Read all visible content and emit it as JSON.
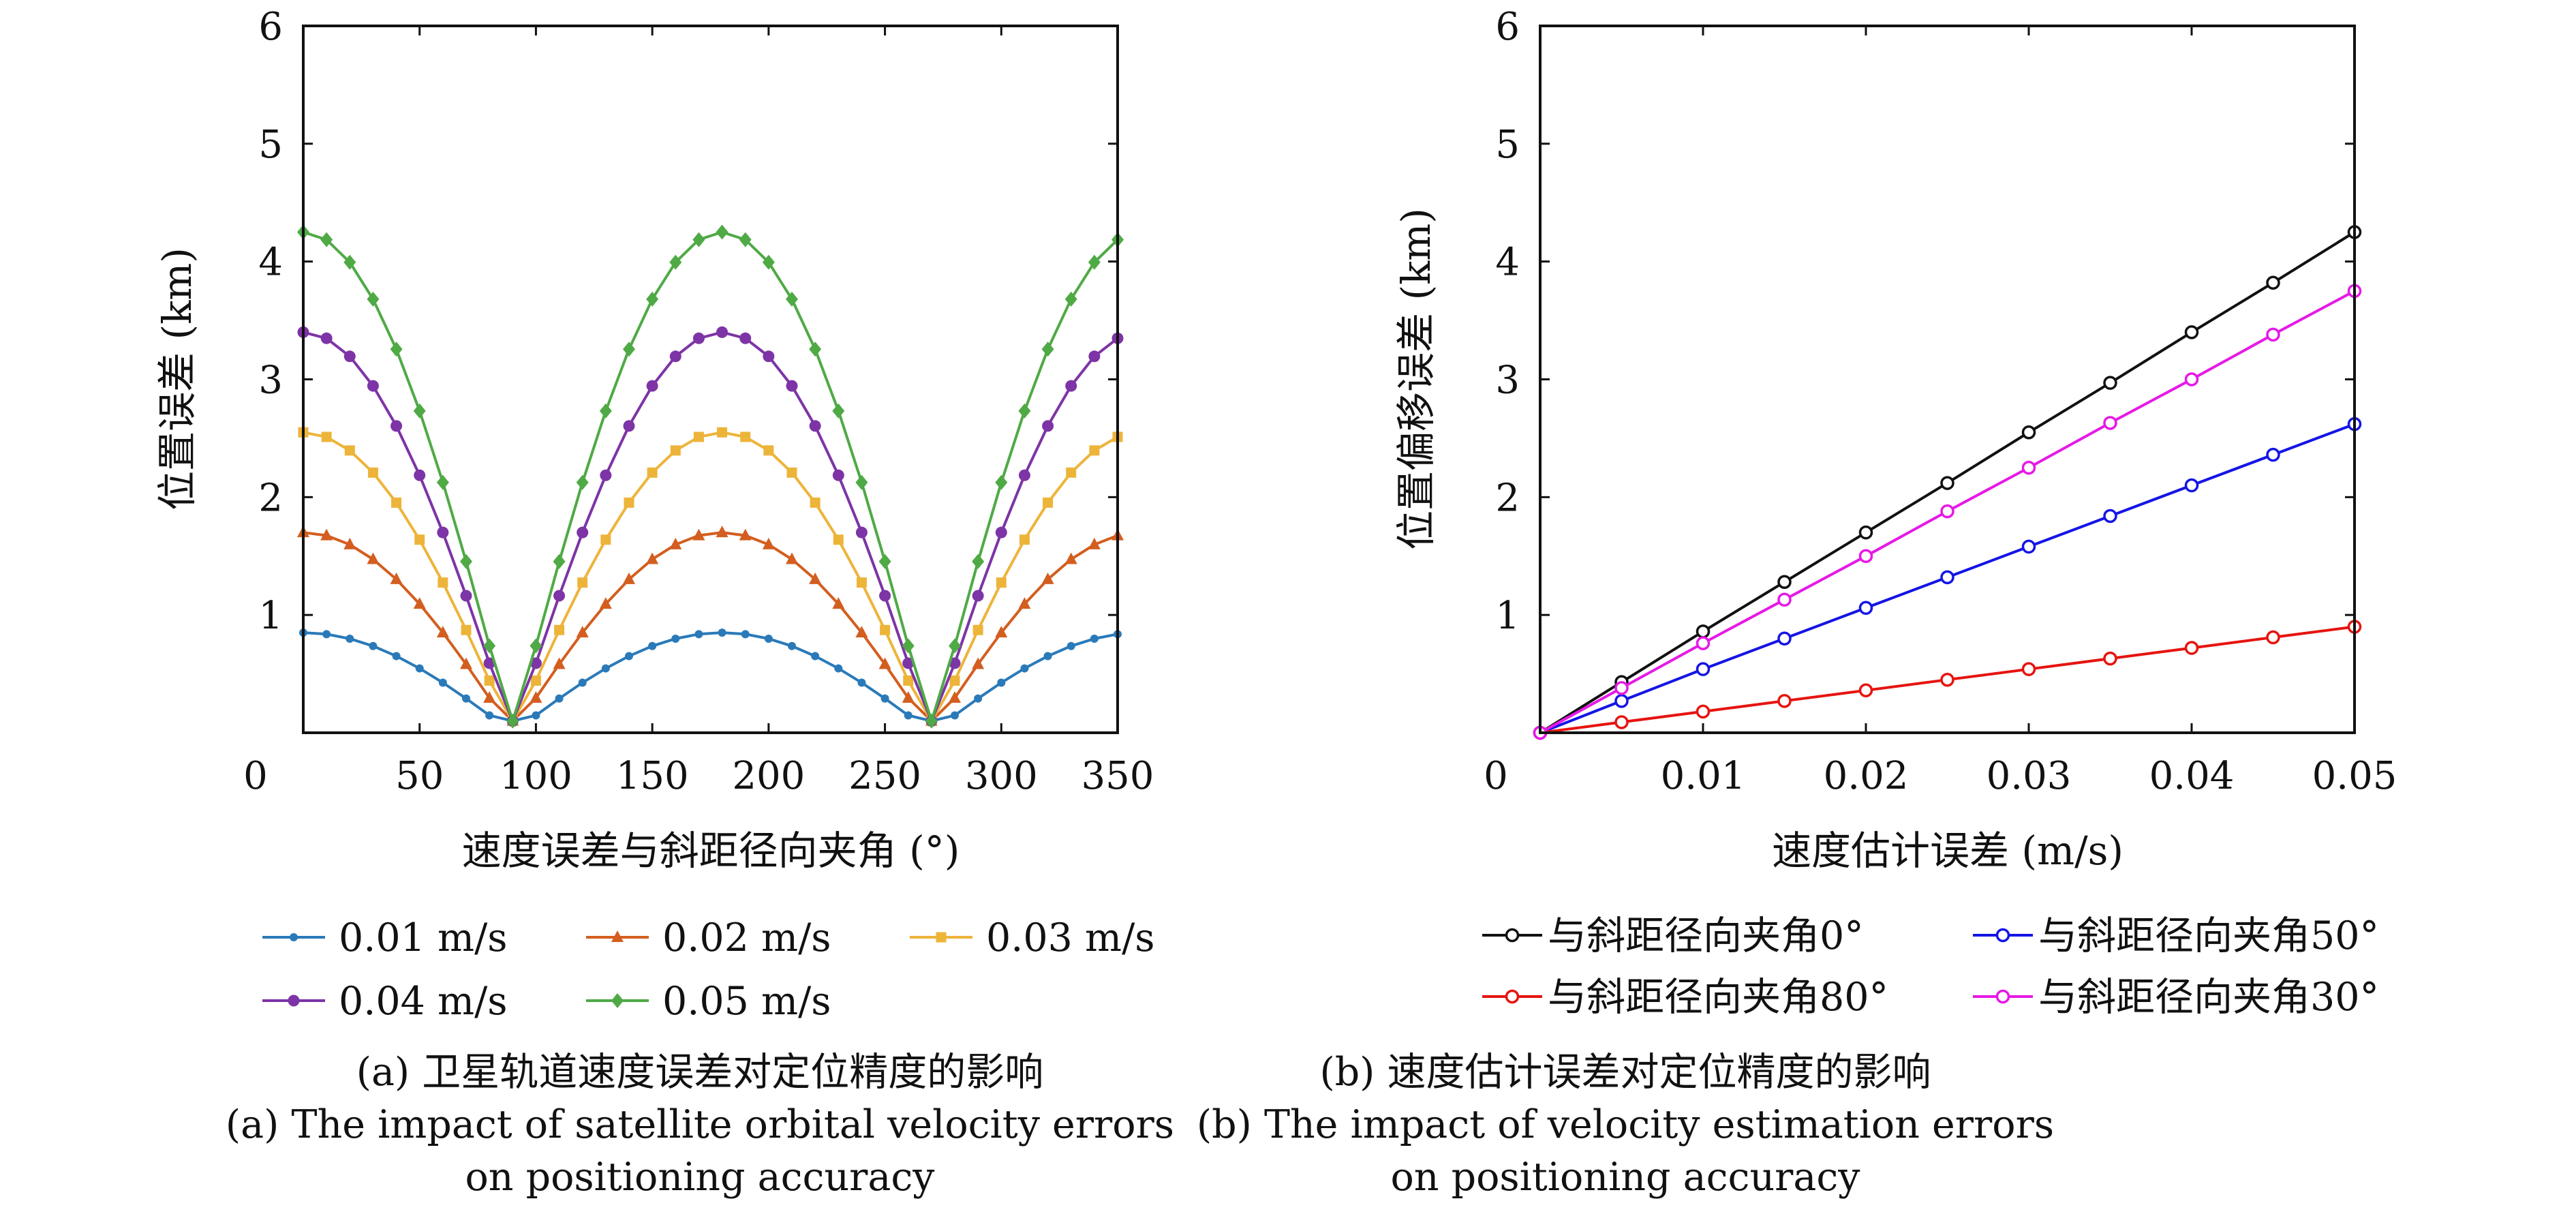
{
  "chart_data": [
    {
      "type": "line",
      "ylabel": "位置误差 (km)",
      "xlabel": "速度误差与斜距径向夹角 (°)",
      "xlim": [
        0,
        350
      ],
      "ylim": [
        0,
        6
      ],
      "xticks": [
        "0",
        "50",
        "100",
        "150",
        "200",
        "250",
        "300",
        "350"
      ],
      "yticks": [
        "1",
        "2",
        "3",
        "4",
        "5",
        "6"
      ],
      "legend_position": "bottom",
      "grid": false,
      "x": [
        0,
        10,
        20,
        30,
        40,
        50,
        60,
        70,
        80,
        90,
        100,
        110,
        120,
        130,
        140,
        150,
        160,
        170,
        180,
        190,
        200,
        210,
        220,
        230,
        240,
        250,
        260,
        270,
        280,
        290,
        300,
        310,
        320,
        330,
        340,
        350
      ],
      "series": [
        {
          "name": "0.01 m/s",
          "color": "#2A7AB9",
          "marker": "point",
          "amplitude": 0.85
        },
        {
          "name": "0.02 m/s",
          "color": "#D35E1F",
          "marker": "triangle",
          "amplitude": 1.7
        },
        {
          "name": "0.03 m/s",
          "color": "#EDB43A",
          "marker": "square",
          "amplitude": 2.55
        },
        {
          "name": "0.04 m/s",
          "color": "#7D34A6",
          "marker": "circle",
          "amplitude": 3.4
        },
        {
          "name": "0.05 m/s",
          "color": "#4FAA45",
          "marker": "diamond",
          "amplitude": 4.25
        }
      ],
      "relation": "y = amplitude × |cos(x)|, with a floor of about 0.1 km near 90° and 270°"
    },
    {
      "type": "line",
      "ylabel": "位置偏移误差 (km)",
      "xlabel": "速度估计误差 (m/s)",
      "xlim": [
        0,
        0.05
      ],
      "ylim": [
        0,
        6
      ],
      "xticks": [
        "0",
        "0.01",
        "0.02",
        "0.03",
        "0.04",
        "0.05"
      ],
      "yticks": [
        "1",
        "2",
        "3",
        "4",
        "5",
        "6"
      ],
      "legend_position": "bottom",
      "grid": false,
      "x": [
        0,
        0.005,
        0.01,
        0.015,
        0.02,
        0.025,
        0.03,
        0.035,
        0.04,
        0.045,
        0.05
      ],
      "series": [
        {
          "name": "与斜距径向夹角0°",
          "color": "#111111",
          "marker": "open-circle",
          "values": [
            0,
            0.43,
            0.86,
            1.28,
            1.7,
            2.12,
            2.55,
            2.97,
            3.4,
            3.82,
            4.25
          ]
        },
        {
          "name": "与斜距径向夹角50°",
          "color": "#1414E6",
          "marker": "open-circle",
          "values": [
            0,
            0.27,
            0.54,
            0.8,
            1.06,
            1.32,
            1.58,
            1.84,
            2.1,
            2.36,
            2.62
          ]
        },
        {
          "name": "与斜距径向夹角80°",
          "color": "#E6140F",
          "marker": "open-circle",
          "values": [
            0,
            0.09,
            0.18,
            0.27,
            0.36,
            0.45,
            0.54,
            0.63,
            0.72,
            0.81,
            0.9
          ]
        },
        {
          "name": "与斜距径向夹角30°",
          "color": "#E619E6",
          "marker": "open-circle",
          "values": [
            0,
            0.38,
            0.76,
            1.13,
            1.5,
            1.88,
            2.25,
            2.63,
            3.0,
            3.38,
            3.75
          ]
        }
      ],
      "legend_order": [
        0,
        1,
        2,
        3
      ]
    }
  ],
  "captions": {
    "a_cn": "(a) 卫星轨道速度误差对定位精度的影响",
    "a_en_1": "(a) The impact of satellite orbital velocity errors",
    "a_en_2": "on positioning accuracy",
    "b_cn": "(b) 速度估计误差对定位精度的影响",
    "b_en_1": "(b) The impact of velocity estimation errors",
    "b_en_2": "on positioning accuracy"
  }
}
